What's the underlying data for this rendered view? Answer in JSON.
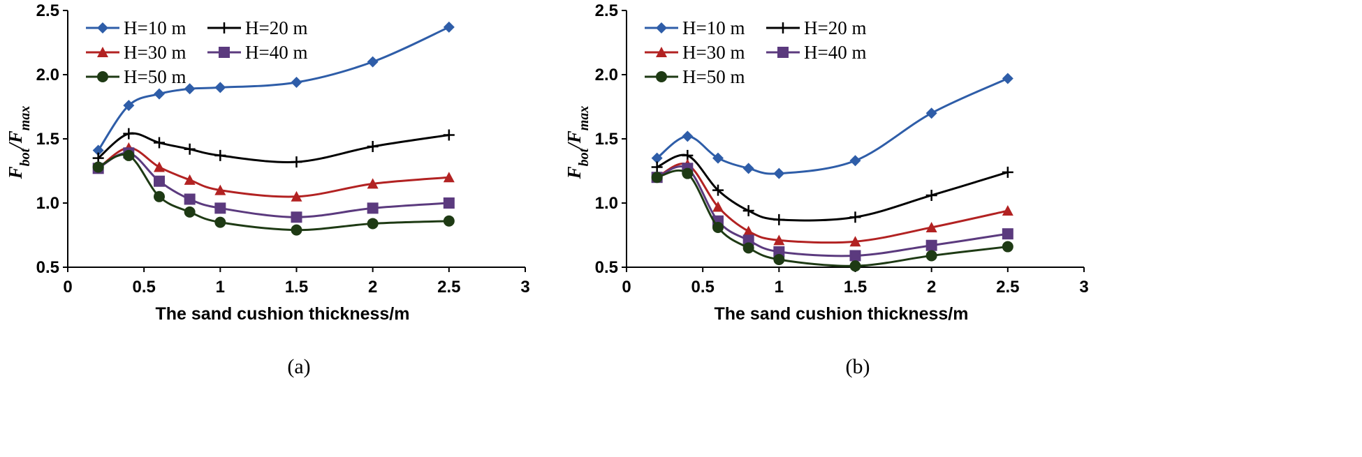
{
  "chart_data": [
    {
      "type": "line",
      "panel_label": "(a)",
      "xlabel": "The sand cushion thickness/m",
      "ylabel": {
        "main": "F",
        "sub1": "bot",
        "slash": "/F",
        "sub2": "max"
      },
      "xlim": [
        0,
        3
      ],
      "ylim": [
        0.5,
        2.5
      ],
      "x_ticks": [
        0,
        0.5,
        1,
        1.5,
        2,
        2.5,
        3
      ],
      "x_tick_labels": [
        "0",
        "0.5",
        "1",
        "1.5",
        "2",
        "2.5",
        "3"
      ],
      "y_ticks": [
        0.5,
        1.0,
        1.5,
        2.0,
        2.5
      ],
      "y_tick_labels": [
        "0.5",
        "1.0",
        "1.5",
        "2.0",
        "2.5"
      ],
      "x": [
        0.2,
        0.4,
        0.6,
        0.8,
        1.0,
        1.5,
        2.0,
        2.5
      ],
      "legend_position": "top-left",
      "series": [
        {
          "name": "H=10 m",
          "values": [
            1.41,
            1.76,
            1.85,
            1.89,
            1.9,
            1.94,
            2.1,
            2.37
          ],
          "color": "#2E5DA8",
          "marker": "diamond"
        },
        {
          "name": "H=20 m",
          "values": [
            1.35,
            1.54,
            1.47,
            1.42,
            1.37,
            1.32,
            1.44,
            1.53
          ],
          "color": "#000000",
          "marker": "plus"
        },
        {
          "name": "H=30 m",
          "values": [
            1.27,
            1.43,
            1.28,
            1.18,
            1.1,
            1.05,
            1.15,
            1.2
          ],
          "color": "#B22222",
          "marker": "triangle"
        },
        {
          "name": "H=40 m",
          "values": [
            1.27,
            1.39,
            1.17,
            1.03,
            0.96,
            0.89,
            0.96,
            1.0
          ],
          "color": "#5B3A7E",
          "marker": "square"
        },
        {
          "name": "H=50 m",
          "values": [
            1.28,
            1.37,
            1.05,
            0.93,
            0.85,
            0.79,
            0.84,
            0.86
          ],
          "color": "#1E3A14",
          "marker": "circle"
        }
      ]
    },
    {
      "type": "line",
      "panel_label": "(b)",
      "xlabel": "The sand cushion thickness/m",
      "ylabel": {
        "main": "F",
        "sub1": "bot",
        "slash": "/F",
        "sub2": "max"
      },
      "xlim": [
        0,
        3
      ],
      "ylim": [
        0.5,
        2.5
      ],
      "x_ticks": [
        0,
        0.5,
        1,
        1.5,
        2,
        2.5,
        3
      ],
      "x_tick_labels": [
        "0",
        "0.5",
        "1",
        "1.5",
        "2",
        "2.5",
        "3"
      ],
      "y_ticks": [
        0.5,
        1.0,
        1.5,
        2.0,
        2.5
      ],
      "y_tick_labels": [
        "0.5",
        "1.0",
        "1.5",
        "2.0",
        "2.5"
      ],
      "x": [
        0.2,
        0.4,
        0.6,
        0.8,
        1.0,
        1.5,
        2.0,
        2.5
      ],
      "legend_position": "top-left",
      "series": [
        {
          "name": "H=10 m",
          "values": [
            1.35,
            1.52,
            1.35,
            1.27,
            1.23,
            1.33,
            1.7,
            1.97
          ],
          "color": "#2E5DA8",
          "marker": "diamond"
        },
        {
          "name": "H=20 m",
          "values": [
            1.28,
            1.37,
            1.1,
            0.94,
            0.87,
            0.89,
            1.06,
            1.24
          ],
          "color": "#000000",
          "marker": "plus"
        },
        {
          "name": "H=30 m",
          "values": [
            1.2,
            1.3,
            0.97,
            0.78,
            0.71,
            0.7,
            0.81,
            0.94
          ],
          "color": "#B22222",
          "marker": "triangle"
        },
        {
          "name": "H=40 m",
          "values": [
            1.2,
            1.27,
            0.86,
            0.71,
            0.62,
            0.59,
            0.67,
            0.76
          ],
          "color": "#5B3A7E",
          "marker": "square"
        },
        {
          "name": "H=50 m",
          "values": [
            1.2,
            1.23,
            0.81,
            0.65,
            0.56,
            0.51,
            0.59,
            0.66
          ],
          "color": "#1E3A14",
          "marker": "circle"
        }
      ]
    }
  ]
}
